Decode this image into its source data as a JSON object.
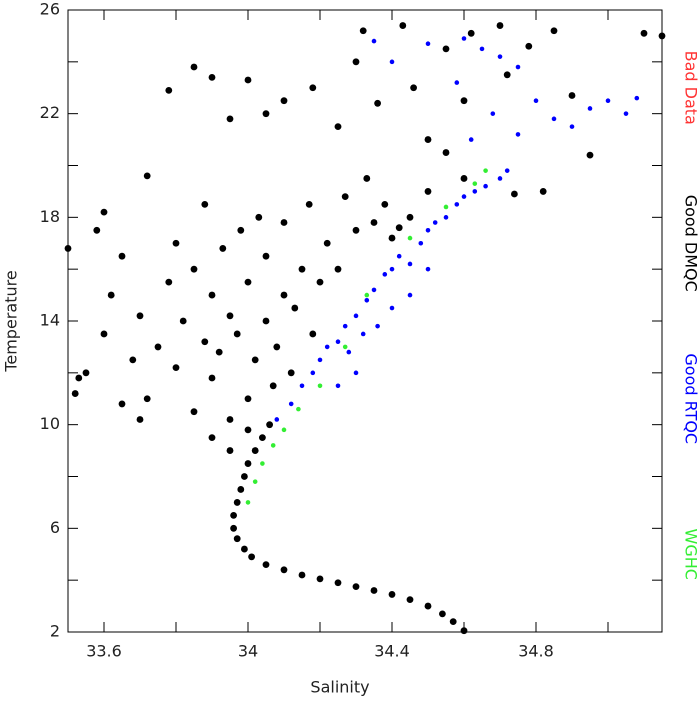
{
  "chart_data": {
    "type": "scatter",
    "xlabel": "Salinity",
    "ylabel": "Temperature",
    "xlim": [
      33.5,
      35.15
    ],
    "ylim": [
      2,
      26
    ],
    "xticks": [
      33.6,
      34.0,
      34.4,
      34.8
    ],
    "xminorticks": [
      33.8,
      34.2,
      34.6,
      35.0
    ],
    "yticks": [
      2,
      6,
      10,
      14,
      18,
      22,
      26
    ],
    "yminorticks": [
      4,
      8,
      12,
      16,
      20,
      24
    ],
    "legend": "right",
    "series": [
      {
        "name": "Bad Data",
        "color": "#ff3333",
        "x": [],
        "values": []
      },
      {
        "name": "Good DMQC",
        "color": "#000000",
        "x": [
          34.6,
          34.57,
          34.54,
          34.5,
          34.45,
          34.4,
          34.35,
          34.3,
          34.25,
          34.2,
          34.15,
          34.1,
          34.05,
          34.01,
          33.99,
          33.97,
          33.96,
          33.96,
          33.97,
          33.98,
          33.99,
          34.0,
          34.02,
          34.04,
          34.06,
          33.52,
          33.55,
          33.6,
          33.62,
          33.58,
          33.65,
          33.68,
          33.7,
          33.72,
          33.75,
          33.78,
          33.8,
          33.8,
          33.82,
          33.85,
          33.85,
          33.88,
          33.88,
          33.9,
          33.9,
          33.92,
          33.93,
          33.95,
          33.95,
          33.97,
          33.98,
          34.0,
          34.0,
          34.02,
          34.03,
          34.05,
          34.05,
          34.07,
          34.08,
          34.1,
          34.1,
          34.12,
          34.13,
          34.15,
          34.17,
          34.18,
          34.2,
          34.22,
          34.25,
          34.27,
          34.3,
          34.33,
          34.35,
          34.38,
          34.4,
          34.42,
          34.45,
          34.5,
          34.55,
          34.6,
          33.85,
          33.9,
          33.95,
          34.0,
          34.05,
          34.1,
          34.18,
          34.25,
          34.3,
          34.32,
          34.36,
          34.43,
          34.46,
          34.5,
          34.55,
          34.6,
          34.62,
          34.7,
          34.72,
          34.78,
          34.85,
          34.9,
          34.95,
          35.1,
          35.15,
          33.72,
          33.6,
          33.78,
          34.74,
          34.82,
          33.5,
          33.53,
          33.65,
          33.7,
          33.9,
          33.95,
          34.0
        ],
        "values": [
          2.05,
          2.4,
          2.7,
          3.0,
          3.25,
          3.45,
          3.6,
          3.75,
          3.9,
          4.05,
          4.2,
          4.4,
          4.6,
          4.9,
          5.2,
          5.6,
          6.0,
          6.5,
          7.0,
          7.5,
          8.0,
          8.5,
          9.0,
          9.5,
          10.0,
          11.2,
          12.0,
          13.5,
          15.0,
          17.5,
          16.5,
          12.5,
          14.2,
          11.0,
          13.0,
          15.5,
          12.2,
          17.0,
          14.0,
          10.5,
          16.0,
          13.2,
          18.5,
          11.8,
          15.0,
          12.8,
          16.8,
          10.2,
          14.2,
          13.5,
          17.5,
          11.0,
          15.5,
          12.5,
          18.0,
          14.0,
          16.5,
          11.5,
          13.0,
          15.0,
          17.8,
          12.0,
          14.5,
          16.0,
          18.5,
          13.5,
          15.5,
          17.0,
          16.0,
          18.8,
          17.5,
          19.5,
          17.8,
          18.5,
          17.2,
          17.6,
          18.0,
          19.0,
          20.5,
          19.5,
          23.8,
          23.4,
          21.8,
          23.3,
          22.0,
          22.5,
          23.0,
          21.5,
          24.0,
          25.2,
          22.4,
          25.4,
          23.0,
          21.0,
          24.5,
          22.5,
          25.1,
          25.4,
          23.5,
          24.6,
          25.2,
          22.7,
          20.4,
          25.1,
          25.0,
          19.6,
          18.2,
          22.9,
          18.9,
          19.0,
          16.8,
          11.8,
          10.8,
          10.2,
          9.5,
          9.0,
          9.8
        ]
      },
      {
        "name": "Good RTQC",
        "color": "#0000ff",
        "x": [
          34.08,
          34.12,
          34.15,
          34.18,
          34.2,
          34.22,
          34.25,
          34.27,
          34.3,
          34.28,
          34.33,
          34.35,
          34.32,
          34.38,
          34.4,
          34.42,
          34.45,
          34.48,
          34.5,
          34.52,
          34.55,
          34.58,
          34.6,
          34.63,
          34.66,
          34.7,
          34.72,
          34.4,
          34.36,
          34.3,
          34.25,
          34.45,
          34.5,
          34.35,
          34.4,
          34.5,
          34.6,
          34.65,
          34.7,
          34.75,
          34.8,
          34.85,
          34.9,
          34.95,
          35.0,
          35.05,
          35.08,
          34.68,
          34.58,
          34.62,
          34.75
        ],
        "values": [
          10.2,
          10.8,
          11.5,
          12.0,
          12.5,
          13.0,
          13.2,
          13.8,
          14.2,
          12.8,
          14.8,
          15.2,
          13.5,
          15.8,
          16.0,
          16.5,
          16.2,
          17.0,
          17.5,
          17.8,
          18.0,
          18.5,
          18.8,
          19.0,
          19.2,
          19.5,
          19.8,
          14.5,
          13.8,
          12.0,
          11.5,
          15.0,
          16.0,
          24.8,
          24.0,
          24.7,
          24.9,
          24.5,
          24.2,
          23.8,
          22.5,
          21.8,
          21.5,
          22.2,
          22.5,
          22.0,
          22.6,
          22.0,
          23.2,
          21.0,
          21.2
        ]
      },
      {
        "name": "WGHC",
        "color": "#33ee33",
        "x": [
          34.0,
          34.02,
          34.04,
          34.07,
          34.1,
          34.14,
          34.2,
          34.27,
          34.33,
          34.45,
          34.55,
          34.63,
          34.66
        ],
        "values": [
          7.0,
          7.8,
          8.5,
          9.2,
          9.8,
          10.6,
          11.5,
          13.0,
          15.0,
          17.2,
          18.4,
          19.3,
          19.8
        ]
      }
    ]
  }
}
